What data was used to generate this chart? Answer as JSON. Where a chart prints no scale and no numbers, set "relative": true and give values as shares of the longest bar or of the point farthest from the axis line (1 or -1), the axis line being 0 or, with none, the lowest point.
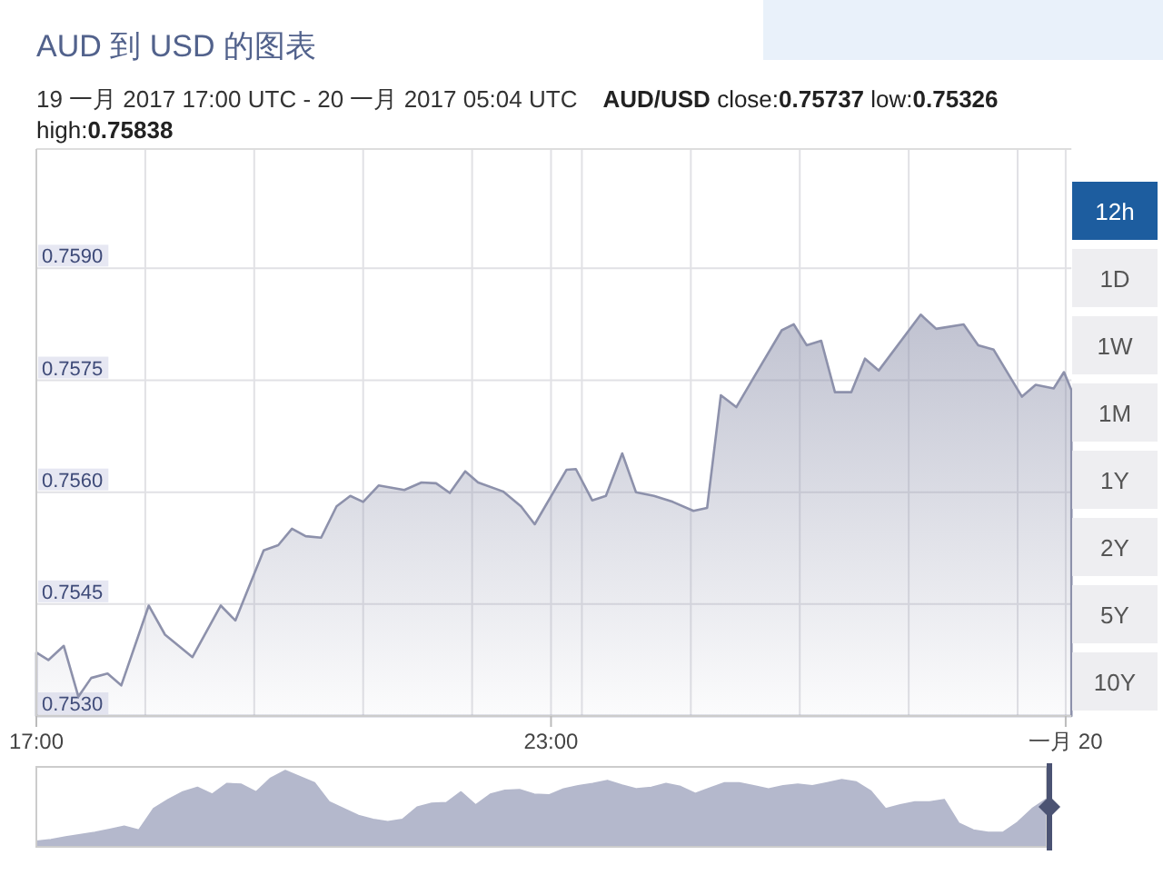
{
  "chart_data": [
    {
      "type": "area",
      "title": "AUD 到 USD 的图表",
      "subtitle": "19 一月 2017 17:00 UTC - 20 一月 2017 05:04 UTC",
      "annotations": [
        "AUD/USD close:0.75737 low:0.75326",
        "high:0.75838"
      ],
      "x": [
        17.0,
        17.14,
        17.32,
        17.49,
        17.64,
        17.83,
        17.99,
        18.31,
        18.5,
        18.82,
        19.15,
        19.32,
        19.65,
        19.82,
        19.98,
        20.14,
        20.32,
        20.5,
        20.66,
        20.81,
        20.99,
        21.29,
        21.49,
        21.66,
        21.82,
        22.0,
        22.15,
        22.44,
        22.65,
        22.81,
        23.18,
        23.29,
        23.48,
        23.64,
        23.83,
        23.99,
        24.2,
        24.42,
        24.66,
        24.82,
        24.98,
        25.16,
        25.37,
        25.69,
        25.83,
        25.98,
        26.15,
        26.31,
        26.5,
        26.66,
        26.82,
        27.31,
        27.49,
        27.81,
        27.98,
        28.16,
        28.49,
        28.65,
        28.86,
        28.98,
        29.0667
      ],
      "values": [
        0.75385,
        0.75375,
        0.75394,
        0.75326,
        0.75351,
        0.75357,
        0.75341,
        0.75448,
        0.75409,
        0.75379,
        0.75448,
        0.75428,
        0.75522,
        0.75529,
        0.75551,
        0.75541,
        0.75539,
        0.75581,
        0.75595,
        0.75587,
        0.75609,
        0.75603,
        0.75613,
        0.75612,
        0.75599,
        0.75628,
        0.75613,
        0.75601,
        0.75581,
        0.75557,
        0.7563,
        0.75631,
        0.75589,
        0.75595,
        0.75652,
        0.756,
        0.75595,
        0.75587,
        0.75575,
        0.75579,
        0.7573,
        0.75714,
        0.75755,
        0.75817,
        0.75825,
        0.75797,
        0.75803,
        0.75734,
        0.75734,
        0.75779,
        0.75763,
        0.75838,
        0.75819,
        0.75825,
        0.75797,
        0.75791,
        0.75728,
        0.75744,
        0.75739,
        0.75761,
        0.75737
      ],
      "color": "#8d91ab",
      "xlim": [
        17,
        29.0667
      ],
      "xticks": [
        {
          "value": 17,
          "label": "17:00"
        },
        {
          "value": 18.27,
          "label": null
        },
        {
          "value": 19.54,
          "label": null
        },
        {
          "value": 20.81,
          "label": null
        },
        {
          "value": 22.08,
          "label": null
        },
        {
          "value": 23,
          "label": "23:00"
        },
        {
          "value": 23.36,
          "label": null
        },
        {
          "value": 24.63,
          "label": null
        },
        {
          "value": 25.9,
          "label": null
        },
        {
          "value": 27.17,
          "label": null
        },
        {
          "value": 28.44,
          "label": null
        },
        {
          "value": 29,
          "label": "一月 20"
        }
      ],
      "ylim": [
        0.753,
        0.7606
      ],
      "yticks": [
        {
          "value": 0.753,
          "label": "0.7530"
        },
        {
          "value": 0.7545,
          "label": "0.7545"
        },
        {
          "value": 0.756,
          "label": "0.7560"
        },
        {
          "value": 0.7575,
          "label": "0.7575"
        },
        {
          "value": 0.759,
          "label": "0.7590"
        }
      ],
      "grid": true
    },
    {
      "type": "other",
      "annotations": [
        "12h",
        "1D",
        "1W",
        "1M",
        "1Y",
        "2Y",
        "5Y",
        "10Y"
      ]
    },
    {
      "type": "area",
      "relative": true,
      "color": "#b4b8cc",
      "categories": [
        null,
        null,
        null,
        null,
        null,
        null,
        null,
        null,
        null,
        null,
        null,
        null,
        null,
        null,
        null,
        null,
        null,
        null,
        null,
        null,
        null,
        null,
        null,
        null,
        null,
        null,
        null,
        null,
        null,
        null,
        null,
        null,
        null,
        null,
        null,
        null,
        null,
        null,
        null,
        null,
        null,
        null,
        null,
        null,
        null,
        null,
        null,
        null,
        null,
        null,
        null,
        null,
        null,
        null,
        null,
        null,
        null,
        null,
        null,
        null,
        null,
        null,
        null,
        null,
        null,
        null,
        null,
        null,
        null,
        null
      ],
      "values": [
        0.075,
        0.094,
        0.13,
        0.16,
        0.19,
        0.23,
        0.27,
        0.22,
        0.5,
        0.62,
        0.72,
        0.78,
        0.69,
        0.83,
        0.82,
        0.72,
        0.9,
        1,
        0.92,
        0.84,
        0.59,
        0.5,
        0.41,
        0.36,
        0.33,
        0.36,
        0.52,
        0.57,
        0.58,
        0.72,
        0.55,
        0.69,
        0.74,
        0.75,
        0.69,
        0.68,
        0.76,
        0.8,
        0.83,
        0.87,
        0.81,
        0.76,
        0.78,
        0.83,
        0.79,
        0.7,
        0.77,
        0.84,
        0.84,
        0.8,
        0.76,
        0.8,
        0.82,
        0.8,
        0.84,
        0.88,
        0.85,
        0.73,
        0.5,
        0.55,
        0.59,
        0.59,
        0.62,
        0.31,
        0.22,
        0.19,
        0.19,
        0.32,
        0.5,
        0.63
      ]
    }
  ]
}
